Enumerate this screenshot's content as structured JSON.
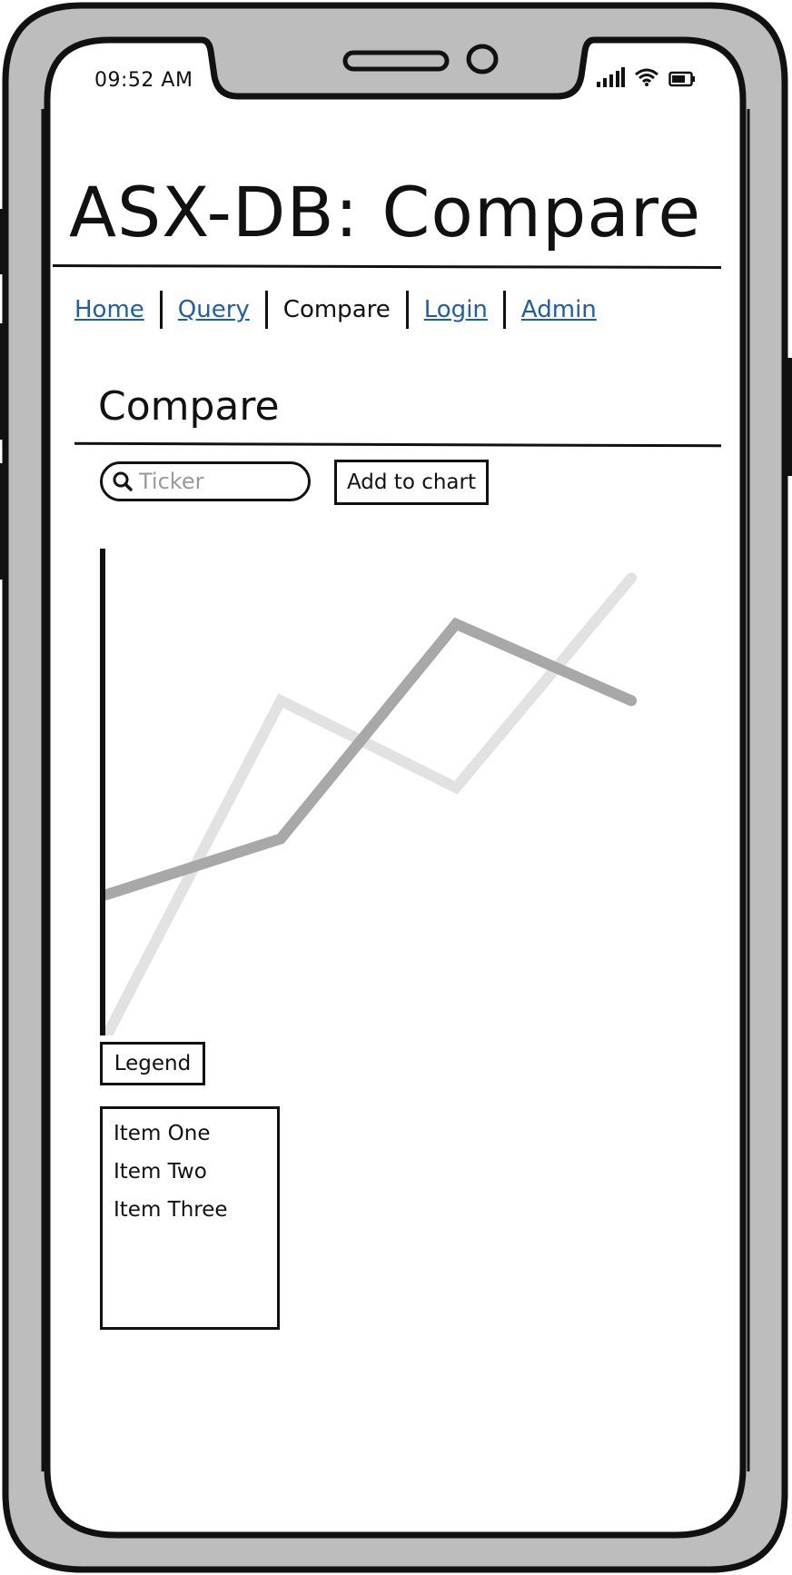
{
  "status_bar": {
    "time": "09:52 AM",
    "icons": [
      "signal-icon",
      "wifi-icon",
      "battery-icon"
    ]
  },
  "app": {
    "title": "ASX-DB: Compare"
  },
  "nav": {
    "items": [
      {
        "label": "Home",
        "active": false
      },
      {
        "label": "Query",
        "active": false
      },
      {
        "label": "Compare",
        "active": true
      },
      {
        "label": "Login",
        "active": false
      },
      {
        "label": "Admin",
        "active": false
      }
    ]
  },
  "compare": {
    "heading": "Compare",
    "search": {
      "placeholder": "Ticker",
      "value": ""
    },
    "add_button_label": "Add to chart",
    "legend_button_label": "Legend",
    "list_items": [
      "Item One",
      "Item Two",
      "Item Three"
    ]
  },
  "colors": {
    "link": "#1f5ea8",
    "series_dark": "#a8a8a8",
    "series_light": "#e2e2e2",
    "frame": "#bdbdbd"
  },
  "chart_data": {
    "type": "line",
    "x": [
      0,
      1,
      2,
      3
    ],
    "xlim": [
      0,
      3.3
    ],
    "ylim": [
      0,
      10
    ],
    "series": [
      {
        "color": "#e2e2e2",
        "values": [
          0,
          6.6,
          4.9,
          9.0
        ]
      },
      {
        "color": "#a8a8a8",
        "values": [
          2.8,
          3.9,
          8.1,
          6.6
        ]
      }
    ]
  }
}
